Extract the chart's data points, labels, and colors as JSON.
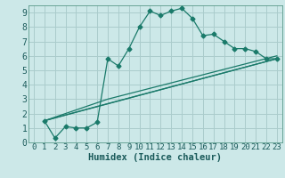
{
  "xlabel": "Humidex (Indice chaleur)",
  "bg_color": "#cce8e8",
  "grid_color": "#aacccc",
  "line_color": "#1a7a6a",
  "xlim": [
    -0.5,
    23.5
  ],
  "ylim": [
    0,
    9.5
  ],
  "xticks": [
    0,
    1,
    2,
    3,
    4,
    5,
    6,
    7,
    8,
    9,
    10,
    11,
    12,
    13,
    14,
    15,
    16,
    17,
    18,
    19,
    20,
    21,
    22,
    23
  ],
  "yticks": [
    0,
    1,
    2,
    3,
    4,
    5,
    6,
    7,
    8,
    9
  ],
  "line1_x": [
    1,
    2,
    3,
    4,
    5,
    6,
    7,
    8,
    9,
    10,
    11,
    12,
    13,
    14,
    15,
    16,
    17,
    18,
    19,
    20,
    21,
    22,
    23
  ],
  "line1_y": [
    1.5,
    0.3,
    1.1,
    1.0,
    1.0,
    1.4,
    5.8,
    5.3,
    6.5,
    8.0,
    9.1,
    8.8,
    9.1,
    9.3,
    8.6,
    7.4,
    7.5,
    7.0,
    6.5,
    6.5,
    6.3,
    5.8,
    5.8
  ],
  "line2_x": [
    1,
    23
  ],
  "line2_y": [
    1.5,
    5.8
  ],
  "line3_x": [
    1,
    7,
    23
  ],
  "line3_y": [
    1.5,
    3.0,
    6.0
  ],
  "line4_x": [
    1,
    5,
    23
  ],
  "line4_y": [
    1.5,
    2.3,
    5.8
  ],
  "tick_color": "#1a5a5a",
  "label_fontsize": 6.5,
  "xlabel_fontsize": 7.5
}
